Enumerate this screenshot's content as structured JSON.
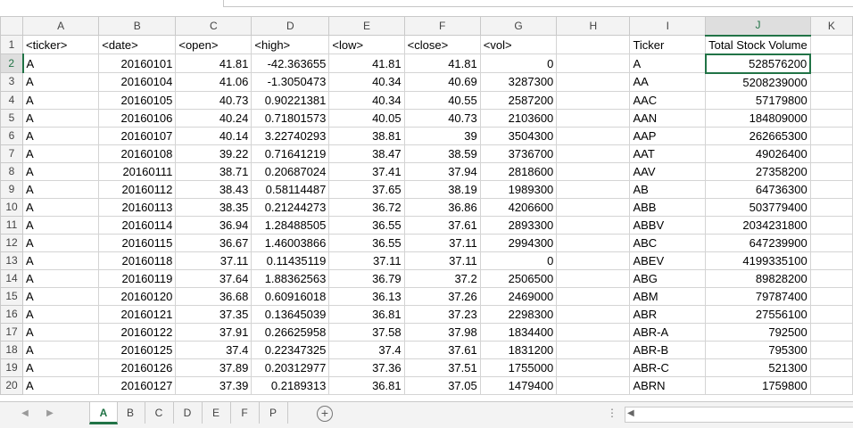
{
  "columns": [
    "A",
    "B",
    "C",
    "D",
    "E",
    "F",
    "G",
    "H",
    "I",
    "J",
    "K"
  ],
  "table_headers": [
    "<ticker>",
    "<date>",
    "<open>",
    "<high>",
    "<low>",
    "<close>",
    "<vol>",
    "",
    "Ticker",
    "Total Stock Volume"
  ],
  "rows": [
    {
      "n": "2",
      "a": "A",
      "b": "20160101",
      "c": "41.81",
      "d": "-42.363655",
      "e": "41.81",
      "f": "41.81",
      "g": "0",
      "i": "A",
      "j": "528576200"
    },
    {
      "n": "3",
      "a": "A",
      "b": "20160104",
      "c": "41.06",
      "d": "-1.3050473",
      "e": "40.34",
      "f": "40.69",
      "g": "3287300",
      "i": "AA",
      "j": "5208239000"
    },
    {
      "n": "4",
      "a": "A",
      "b": "20160105",
      "c": "40.73",
      "d": "0.90221381",
      "e": "40.34",
      "f": "40.55",
      "g": "2587200",
      "i": "AAC",
      "j": "57179800"
    },
    {
      "n": "5",
      "a": "A",
      "b": "20160106",
      "c": "40.24",
      "d": "0.71801573",
      "e": "40.05",
      "f": "40.73",
      "g": "2103600",
      "i": "AAN",
      "j": "184809000"
    },
    {
      "n": "6",
      "a": "A",
      "b": "20160107",
      "c": "40.14",
      "d": "3.22740293",
      "e": "38.81",
      "f": "39",
      "g": "3504300",
      "i": "AAP",
      "j": "262665300"
    },
    {
      "n": "7",
      "a": "A",
      "b": "20160108",
      "c": "39.22",
      "d": "0.71641219",
      "e": "38.47",
      "f": "38.59",
      "g": "3736700",
      "i": "AAT",
      "j": "49026400"
    },
    {
      "n": "8",
      "a": "A",
      "b": "20160111",
      "c": "38.71",
      "d": "0.20687024",
      "e": "37.41",
      "f": "37.94",
      "g": "2818600",
      "i": "AAV",
      "j": "27358200"
    },
    {
      "n": "9",
      "a": "A",
      "b": "20160112",
      "c": "38.43",
      "d": "0.58114487",
      "e": "37.65",
      "f": "38.19",
      "g": "1989300",
      "i": "AB",
      "j": "64736300"
    },
    {
      "n": "10",
      "a": "A",
      "b": "20160113",
      "c": "38.35",
      "d": "0.21244273",
      "e": "36.72",
      "f": "36.86",
      "g": "4206600",
      "i": "ABB",
      "j": "503779400"
    },
    {
      "n": "11",
      "a": "A",
      "b": "20160114",
      "c": "36.94",
      "d": "1.28488505",
      "e": "36.55",
      "f": "37.61",
      "g": "2893300",
      "i": "ABBV",
      "j": "2034231800"
    },
    {
      "n": "12",
      "a": "A",
      "b": "20160115",
      "c": "36.67",
      "d": "1.46003866",
      "e": "36.55",
      "f": "37.11",
      "g": "2994300",
      "i": "ABC",
      "j": "647239900"
    },
    {
      "n": "13",
      "a": "A",
      "b": "20160118",
      "c": "37.11",
      "d": "0.11435119",
      "e": "37.11",
      "f": "37.11",
      "g": "0",
      "i": "ABEV",
      "j": "4199335100"
    },
    {
      "n": "14",
      "a": "A",
      "b": "20160119",
      "c": "37.64",
      "d": "1.88362563",
      "e": "36.79",
      "f": "37.2",
      "g": "2506500",
      "i": "ABG",
      "j": "89828200"
    },
    {
      "n": "15",
      "a": "A",
      "b": "20160120",
      "c": "36.68",
      "d": "0.60916018",
      "e": "36.13",
      "f": "37.26",
      "g": "2469000",
      "i": "ABM",
      "j": "79787400"
    },
    {
      "n": "16",
      "a": "A",
      "b": "20160121",
      "c": "37.35",
      "d": "0.13645039",
      "e": "36.81",
      "f": "37.23",
      "g": "2298300",
      "i": "ABR",
      "j": "27556100"
    },
    {
      "n": "17",
      "a": "A",
      "b": "20160122",
      "c": "37.91",
      "d": "0.26625958",
      "e": "37.58",
      "f": "37.98",
      "g": "1834400",
      "i": "ABR-A",
      "j": "792500"
    },
    {
      "n": "18",
      "a": "A",
      "b": "20160125",
      "c": "37.4",
      "d": "0.22347325",
      "e": "37.4",
      "f": "37.61",
      "g": "1831200",
      "i": "ABR-B",
      "j": "795300"
    },
    {
      "n": "19",
      "a": "A",
      "b": "20160126",
      "c": "37.89",
      "d": "0.20312977",
      "e": "37.36",
      "f": "37.51",
      "g": "1755000",
      "i": "ABR-C",
      "j": "521300"
    },
    {
      "n": "20",
      "a": "A",
      "b": "20160127",
      "c": "37.39",
      "d": "0.2189313",
      "e": "36.81",
      "f": "37.05",
      "g": "1479400",
      "i": "ABRN",
      "j": "1759800"
    }
  ],
  "sheet_tabs": [
    "A",
    "B",
    "C",
    "D",
    "E",
    "F",
    "P"
  ],
  "active_tab": "A",
  "selected_cell": "J2",
  "colors": {
    "accent": "#217346",
    "header_bg": "#f3f3f3"
  },
  "icons": {
    "add_sheet": "plus-circle-icon",
    "scroll_prev": "caret-left-icon",
    "scroll_next": "caret-right-icon"
  }
}
